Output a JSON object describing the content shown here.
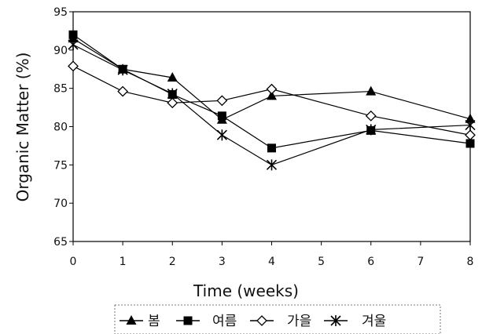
{
  "chart_data": {
    "type": "line",
    "xlabel": "Time (weeks)",
    "ylabel": "Organic Matter (%)",
    "xlim": [
      0,
      8
    ],
    "ylim": [
      65,
      95
    ],
    "x_ticks": [
      "0",
      "1",
      "2",
      "3",
      "4",
      "5",
      "6",
      "7",
      "8"
    ],
    "y_ticks": [
      "65",
      "70",
      "75",
      "80",
      "85",
      "90",
      "95"
    ],
    "grid": false,
    "legend_position": "bottom",
    "series": [
      {
        "name": "봄",
        "marker": "triangle",
        "x": [
          0,
          1,
          2,
          3,
          4,
          6,
          8
        ],
        "y": [
          91.5,
          87.5,
          86.4,
          80.9,
          84.0,
          84.6,
          81.0
        ]
      },
      {
        "name": "여름",
        "marker": "square",
        "x": [
          0,
          1,
          2,
          3,
          4,
          6,
          8
        ],
        "y": [
          92.0,
          87.5,
          84.2,
          81.4,
          77.2,
          79.5,
          77.8
        ]
      },
      {
        "name": "가을",
        "marker": "diamond",
        "x": [
          0,
          1,
          2,
          3,
          4,
          6,
          8
        ],
        "y": [
          87.9,
          84.6,
          83.1,
          83.4,
          84.9,
          81.4,
          78.9
        ]
      },
      {
        "name": "겨울",
        "marker": "star",
        "x": [
          0,
          1,
          2,
          3,
          4,
          6,
          8
        ],
        "y": [
          90.7,
          87.4,
          84.3,
          78.9,
          75.0,
          79.6,
          80.2
        ]
      }
    ]
  }
}
